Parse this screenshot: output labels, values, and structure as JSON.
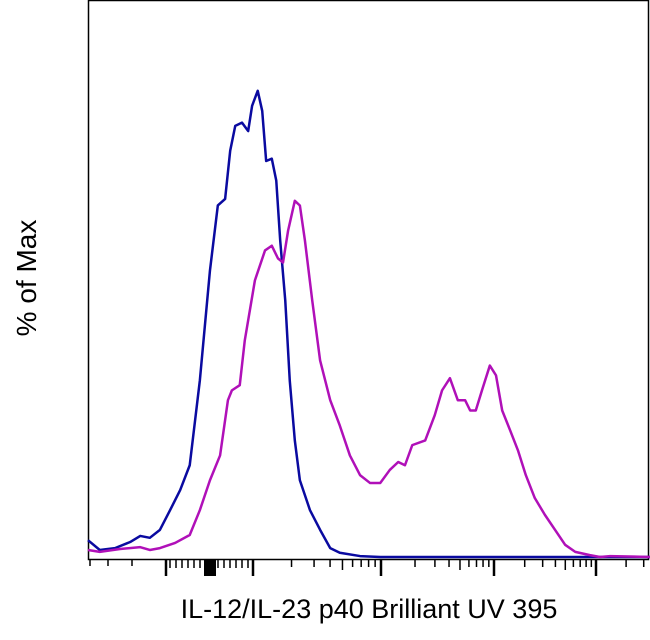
{
  "chart_data": {
    "type": "line",
    "title": "",
    "xlabel": "IL-12/IL-23 p40 Brilliant UV 395",
    "ylabel": "% of Max",
    "xscale": "biexponential (unlabeled), positions given as 0-100 axis units",
    "xlim": [
      0,
      100
    ],
    "ylim": [
      0,
      119
    ],
    "grid": false,
    "legend": "none",
    "series": [
      {
        "name": "blue histogram",
        "color": "#0a0aa0",
        "points": [
          [
            0,
            3.6
          ],
          [
            2.1,
            1.5
          ],
          [
            4.8,
            1.9
          ],
          [
            7.5,
            3.2
          ],
          [
            9.3,
            4.5
          ],
          [
            11.0,
            4.1
          ],
          [
            12.8,
            5.8
          ],
          [
            14.6,
            10.0
          ],
          [
            16.4,
            14.3
          ],
          [
            18.1,
            19.6
          ],
          [
            19.9,
            37.7
          ],
          [
            21.7,
            61.2
          ],
          [
            23.1,
            75.1
          ],
          [
            24.4,
            76.5
          ],
          [
            25.3,
            86.8
          ],
          [
            26.2,
            92.1
          ],
          [
            27.4,
            92.8
          ],
          [
            28.5,
            91.0
          ],
          [
            29.2,
            96.4
          ],
          [
            30.2,
            99.6
          ],
          [
            31.0,
            95.3
          ],
          [
            31.7,
            84.6
          ],
          [
            32.7,
            85.1
          ],
          [
            33.5,
            80.4
          ],
          [
            34.2,
            67.6
          ],
          [
            35.1,
            54.8
          ],
          [
            35.9,
            37.7
          ],
          [
            36.8,
            24.9
          ],
          [
            37.7,
            16.4
          ],
          [
            39.5,
            10.0
          ],
          [
            41.3,
            5.8
          ],
          [
            43.1,
            1.9
          ],
          [
            44.8,
            0.9
          ],
          [
            48.4,
            0.2
          ],
          [
            52.0,
            0
          ],
          [
            100,
            0
          ]
        ]
      },
      {
        "name": "magenta histogram",
        "color": "#b010b8",
        "points": [
          [
            0,
            1.5
          ],
          [
            2.1,
            1.1
          ],
          [
            5.7,
            1.7
          ],
          [
            9.3,
            2.1
          ],
          [
            11.0,
            1.5
          ],
          [
            12.8,
            1.9
          ],
          [
            15.5,
            3.0
          ],
          [
            18.1,
            4.7
          ],
          [
            19.9,
            10.0
          ],
          [
            21.7,
            16.4
          ],
          [
            23.5,
            21.7
          ],
          [
            24.9,
            33.5
          ],
          [
            25.6,
            35.6
          ],
          [
            27.0,
            36.7
          ],
          [
            27.9,
            46.3
          ],
          [
            29.7,
            59.1
          ],
          [
            31.5,
            65.5
          ],
          [
            32.7,
            66.5
          ],
          [
            33.8,
            63.8
          ],
          [
            34.7,
            62.9
          ],
          [
            35.6,
            69.7
          ],
          [
            36.8,
            76.1
          ],
          [
            37.7,
            75.1
          ],
          [
            38.6,
            67.6
          ],
          [
            39.9,
            54.8
          ],
          [
            41.3,
            42.0
          ],
          [
            43.1,
            33.5
          ],
          [
            44.8,
            28.1
          ],
          [
            46.6,
            21.7
          ],
          [
            48.4,
            17.5
          ],
          [
            50.2,
            15.8
          ],
          [
            52.0,
            15.8
          ],
          [
            53.7,
            18.6
          ],
          [
            55.2,
            20.3
          ],
          [
            56.4,
            19.6
          ],
          [
            57.7,
            23.9
          ],
          [
            60.0,
            24.9
          ],
          [
            61.7,
            30.3
          ],
          [
            63.0,
            35.6
          ],
          [
            64.4,
            38.2
          ],
          [
            65.8,
            33.5
          ],
          [
            67.1,
            33.5
          ],
          [
            68.0,
            31.3
          ],
          [
            69.0,
            31.3
          ],
          [
            70.1,
            35.6
          ],
          [
            71.5,
            40.9
          ],
          [
            72.6,
            38.8
          ],
          [
            73.7,
            31.3
          ],
          [
            75.1,
            27.1
          ],
          [
            76.5,
            22.8
          ],
          [
            77.9,
            17.5
          ],
          [
            79.5,
            12.6
          ],
          [
            81.3,
            9.0
          ],
          [
            83.1,
            5.8
          ],
          [
            84.9,
            2.6
          ],
          [
            86.7,
            1.1
          ],
          [
            89.3,
            0.4
          ],
          [
            91.1,
            0
          ],
          [
            92.9,
            0.2
          ],
          [
            100,
            0
          ]
        ]
      }
    ]
  }
}
